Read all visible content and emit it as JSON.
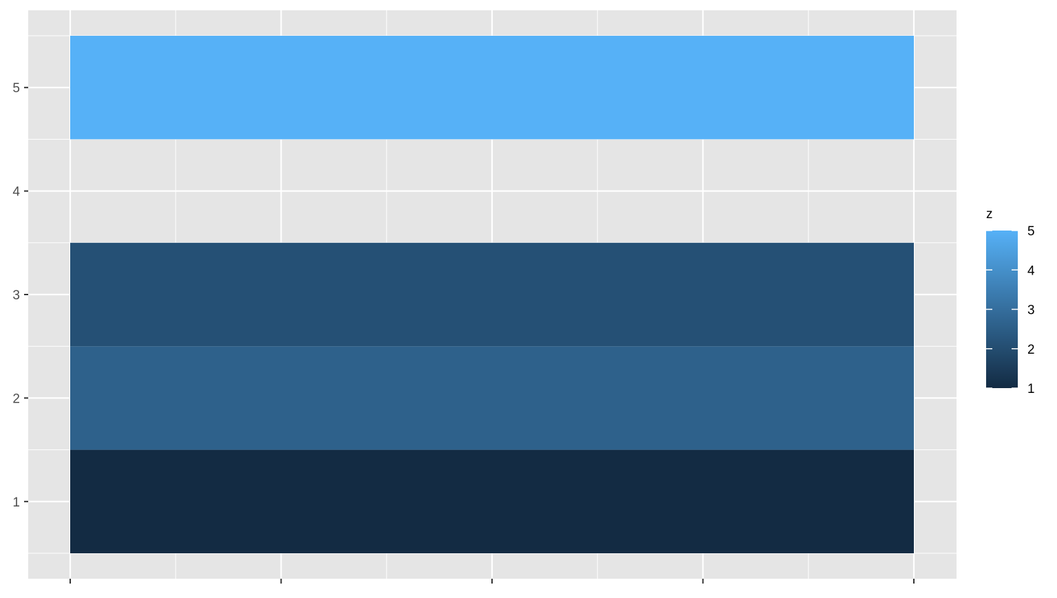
{
  "chart_data": {
    "type": "heatmap",
    "title": "",
    "xlabel": "",
    "ylabel": "",
    "y_ticks": [
      "1",
      "2",
      "3",
      "4",
      "5"
    ],
    "ylim": [
      0.5,
      5.5
    ],
    "x_tick_count": 5,
    "x_tick_labels": [],
    "grid": true,
    "tiles": [
      {
        "y": 1,
        "z": 1
      },
      {
        "y": 2,
        "z": 2.6
      },
      {
        "y": 3,
        "z": 2.1
      },
      {
        "y": 5,
        "z": 5
      }
    ],
    "legend": {
      "title": "z",
      "placement": "right",
      "labels": [
        "5",
        "4",
        "3",
        "2",
        "1"
      ],
      "zlim": [
        1,
        5
      ],
      "low_color": "#132B43",
      "high_color": "#56B1F7"
    },
    "colors": {
      "panel_background": "#e5e5e5",
      "grid_line": "#ffffff",
      "axis_text": "#4d4d4d",
      "tick_mark": "#333333"
    }
  }
}
